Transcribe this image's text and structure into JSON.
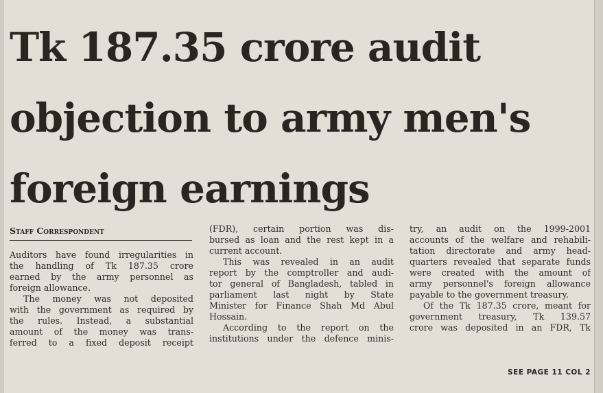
{
  "article": {
    "headline": [
      "Tk 187.35 crore audit",
      "objection to army men's",
      "foreign earnings"
    ],
    "byline": "Staff Correspondent",
    "columns": [
      [
        {
          "text": "Auditors have found irregularities in",
          "indent": false,
          "last": false
        },
        {
          "text": "the handling of Tk 187.35 crore",
          "indent": false,
          "last": false
        },
        {
          "text": "earned by the army personnel as",
          "indent": false,
          "last": false
        },
        {
          "text": "foreign allowance.",
          "indent": false,
          "last": true
        },
        {
          "text": "The money was not deposited",
          "indent": true,
          "last": false
        },
        {
          "text": "with the government as required by",
          "indent": false,
          "last": false
        },
        {
          "text": "the rules. Instead, a substantial",
          "indent": false,
          "last": false
        },
        {
          "text": "amount of the money was trans-",
          "indent": false,
          "last": false
        },
        {
          "text": "ferred to a fixed deposit receipt",
          "indent": false,
          "last": false
        }
      ],
      [
        {
          "text": "(FDR), certain portion was dis-",
          "indent": false,
          "last": false
        },
        {
          "text": "bursed as loan and the rest kept in a",
          "indent": false,
          "last": false
        },
        {
          "text": "current account.",
          "indent": false,
          "last": true
        },
        {
          "text": "This was revealed in an audit",
          "indent": true,
          "last": false
        },
        {
          "text": "report by the comptroller and audi-",
          "indent": false,
          "last": false
        },
        {
          "text": "tor general of Bangladesh, tabled in",
          "indent": false,
          "last": false
        },
        {
          "text": "parliament last night by State",
          "indent": false,
          "last": false
        },
        {
          "text": "Minister for Finance Shah Md Abul",
          "indent": false,
          "last": false
        },
        {
          "text": "Hossain.",
          "indent": false,
          "last": true
        },
        {
          "text": "According to the report on the",
          "indent": true,
          "last": false
        },
        {
          "text": "institutions under the defence minis-",
          "indent": false,
          "last": false
        }
      ],
      [
        {
          "text": "try, an audit on the 1999-2001",
          "indent": false,
          "last": false
        },
        {
          "text": "accounts of the welfare and rehabili-",
          "indent": false,
          "last": false
        },
        {
          "text": "tation directorate and army head-",
          "indent": false,
          "last": false
        },
        {
          "text": "quarters revealed that separate funds",
          "indent": false,
          "last": false
        },
        {
          "text": "were created with the amount of",
          "indent": false,
          "last": false
        },
        {
          "text": "army personnel's foreign allowance",
          "indent": false,
          "last": false
        },
        {
          "text": "payable to the government treasury.",
          "indent": false,
          "last": true
        },
        {
          "text": "Of the Tk 187.35 crore, meant for",
          "indent": true,
          "last": false
        },
        {
          "text": "government treasury, Tk 139.57",
          "indent": false,
          "last": false
        },
        {
          "text": "crore was deposited in an FDR, Tk",
          "indent": false,
          "last": false
        }
      ]
    ],
    "continuation": "SEE PAGE 11 COL 2"
  }
}
